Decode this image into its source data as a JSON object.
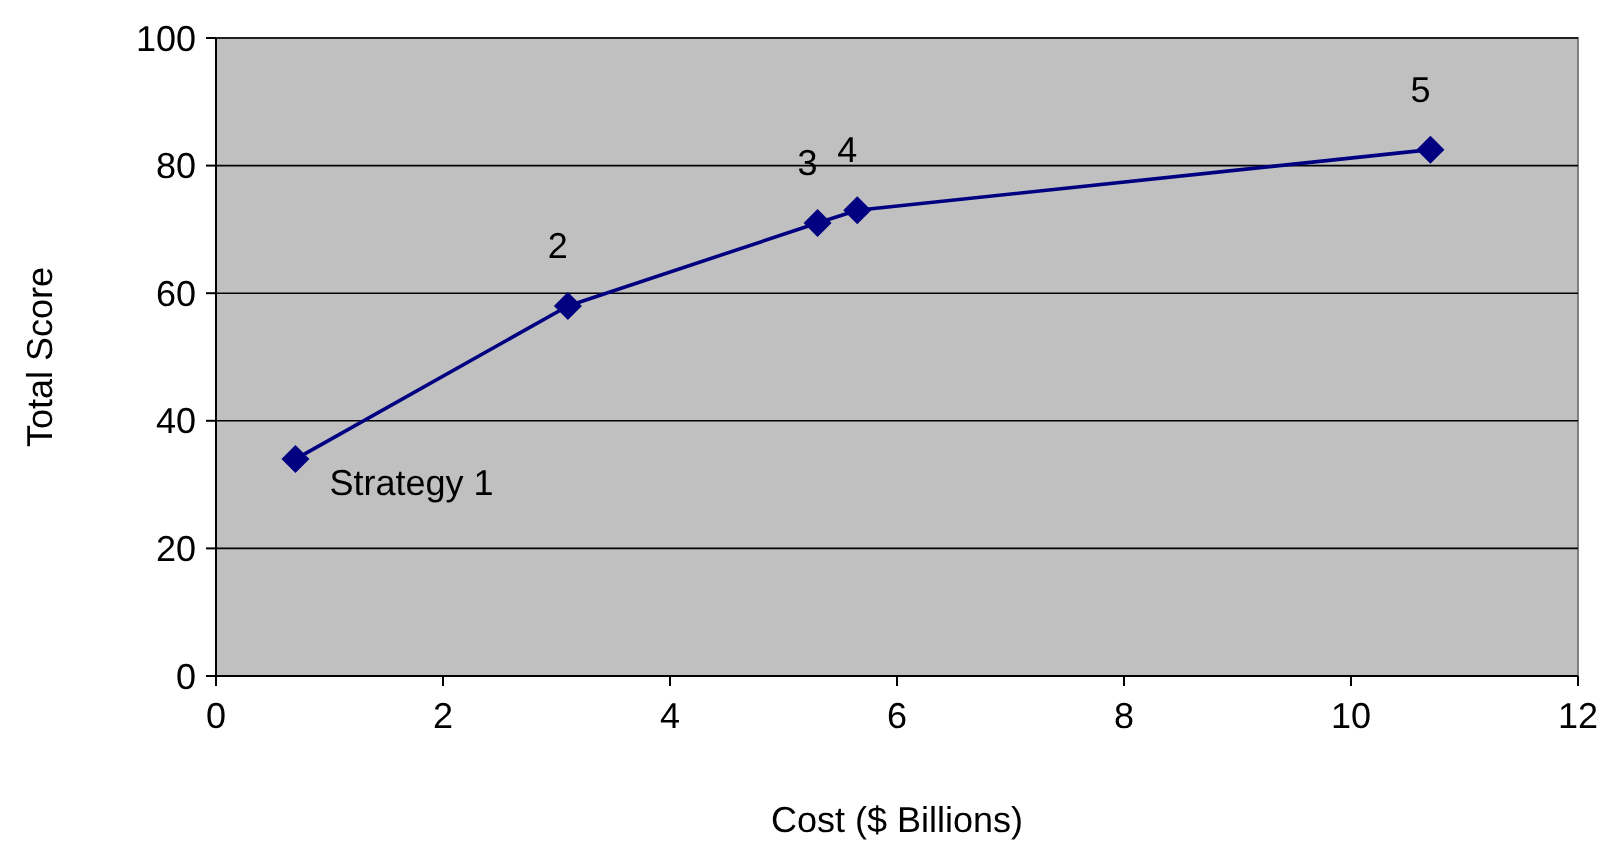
{
  "chart_data": {
    "type": "line",
    "xlabel": "Cost ($ Billions)",
    "ylabel": "Total Score",
    "x": [
      0.7,
      3.1,
      5.3,
      5.65,
      10.7
    ],
    "series": [
      {
        "color": "#000080",
        "values": [
          34,
          58,
          71,
          73,
          82.5
        ]
      }
    ],
    "marker": "diamond",
    "grid": "y",
    "xlim": [
      0,
      12
    ],
    "xticks": [
      0,
      2,
      4,
      6,
      8,
      10,
      12
    ],
    "ylim": [
      0,
      100
    ],
    "yticks": [
      0,
      20,
      40,
      60,
      80,
      100
    ],
    "annotations": [
      {
        "text": "Strategy 1",
        "x": 0.7,
        "y": 34
      },
      {
        "text": "2",
        "x": 3.1,
        "y": 58
      },
      {
        "text": "3",
        "x": 5.3,
        "y": 71
      },
      {
        "text": "4",
        "x": 5.65,
        "y": 73
      },
      {
        "text": "5",
        "x": 10.7,
        "y": 82.5
      }
    ]
  }
}
